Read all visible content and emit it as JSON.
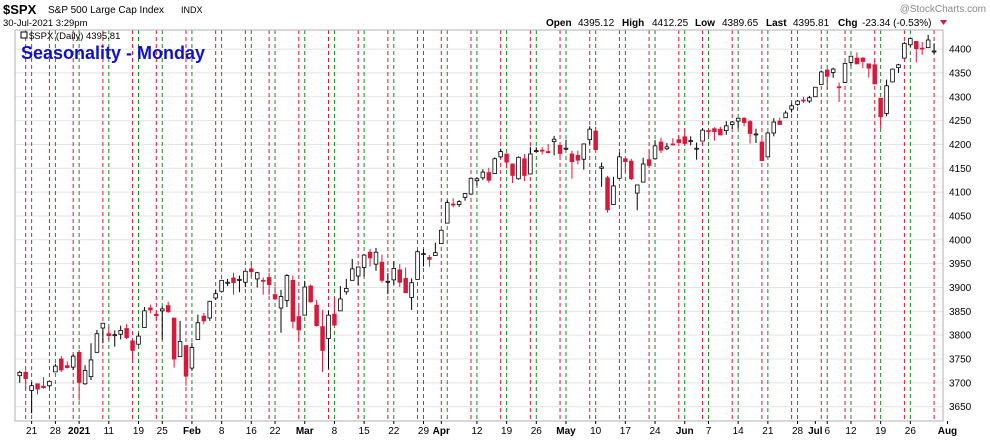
{
  "header": {
    "symbol": "$SPX",
    "name": "S&P 500 Large Cap Index",
    "exchange": "INDX",
    "date": "30-Jul-2021 3:29pm",
    "watermark": "@StockCharts.com",
    "open_label": "Open",
    "open": "4395.12",
    "high_label": "High",
    "high": "4412.25",
    "low_label": "Low",
    "low": "4389.65",
    "last_label": "Last",
    "last": "4395.81",
    "chg_label": "Chg",
    "chg": "-23.34 (-0.53%)"
  },
  "legend": {
    "text": "$SPX (Daily) 4395.81"
  },
  "title": "Seasonality - Monday",
  "colors": {
    "up": "#ffffff",
    "down": "#d8193b",
    "outline": "#000000",
    "monday_line": "#1a8a1a",
    "friday_line": "#d8193b",
    "title": "#1010cc",
    "grid": "#e4e4e4",
    "change": "#d8193b"
  },
  "chart_data": {
    "type": "candlestick",
    "title": "Seasonality - Monday",
    "symbol": "$SPX",
    "interval": "Daily",
    "ylim": [
      3620,
      4440
    ],
    "yticks": [
      3650,
      3700,
      3750,
      3800,
      3850,
      3900,
      3950,
      4000,
      4050,
      4100,
      4150,
      4200,
      4250,
      4300,
      4350,
      4400
    ],
    "grid": true,
    "vertical_lines": "green dashed line on each Monday, red dashed line on each Friday",
    "xticks": [
      {
        "label": "21",
        "date": "2020-12-21"
      },
      {
        "label": "28",
        "date": "2020-12-28"
      },
      {
        "label": "2021",
        "date": "2021-01-04"
      },
      {
        "label": "11",
        "date": "2021-01-11"
      },
      {
        "label": "19",
        "date": "2021-01-19"
      },
      {
        "label": "25",
        "date": "2021-01-25"
      },
      {
        "label": "Feb",
        "date": "2021-02-01"
      },
      {
        "label": "8",
        "date": "2021-02-08"
      },
      {
        "label": "16",
        "date": "2021-02-16"
      },
      {
        "label": "22",
        "date": "2021-02-22"
      },
      {
        "label": "Mar",
        "date": "2021-03-01"
      },
      {
        "label": "8",
        "date": "2021-03-08"
      },
      {
        "label": "15",
        "date": "2021-03-15"
      },
      {
        "label": "22",
        "date": "2021-03-22"
      },
      {
        "label": "29",
        "date": "2021-03-29"
      },
      {
        "label": "Apr",
        "date": "2021-04-01"
      },
      {
        "label": "12",
        "date": "2021-04-12"
      },
      {
        "label": "19",
        "date": "2021-04-19"
      },
      {
        "label": "26",
        "date": "2021-04-26"
      },
      {
        "label": "May",
        "date": "2021-05-03"
      },
      {
        "label": "10",
        "date": "2021-05-10"
      },
      {
        "label": "17",
        "date": "2021-05-17"
      },
      {
        "label": "24",
        "date": "2021-05-24"
      },
      {
        "label": "Jun",
        "date": "2021-06-01"
      },
      {
        "label": "7",
        "date": "2021-06-07"
      },
      {
        "label": "14",
        "date": "2021-06-14"
      },
      {
        "label": "21",
        "date": "2021-06-21"
      },
      {
        "label": "28",
        "date": "2021-06-28"
      },
      {
        "label": "Jul",
        "date": "2021-07-01"
      },
      {
        "label": "6",
        "date": "2021-07-06"
      },
      {
        "label": "12",
        "date": "2021-07-12"
      },
      {
        "label": "19",
        "date": "2021-07-19"
      },
      {
        "label": "26",
        "date": "2021-07-26"
      },
      {
        "label": "Aug",
        "date": "2021-08-02"
      }
    ],
    "mondays": [
      "2020-12-21",
      "2020-12-28",
      "2021-01-04",
      "2021-01-11",
      "2021-01-19",
      "2021-01-25",
      "2021-02-01",
      "2021-02-08",
      "2021-02-16",
      "2021-02-22",
      "2021-03-01",
      "2021-03-08",
      "2021-03-15",
      "2021-03-22",
      "2021-03-29",
      "2021-04-05",
      "2021-04-12",
      "2021-04-19",
      "2021-04-26",
      "2021-05-03",
      "2021-05-10",
      "2021-05-17",
      "2021-05-24",
      "2021-06-01",
      "2021-06-07",
      "2021-06-14",
      "2021-06-21",
      "2021-06-28",
      "2021-07-06",
      "2021-07-12",
      "2021-07-19",
      "2021-07-26"
    ],
    "fridays": [
      "2020-12-18",
      "2020-12-24",
      "2020-12-31",
      "2021-01-08",
      "2021-01-15",
      "2021-01-22",
      "2021-01-29",
      "2021-02-05",
      "2021-02-12",
      "2021-02-19",
      "2021-02-26",
      "2021-03-05",
      "2021-03-12",
      "2021-03-19",
      "2021-03-26",
      "2021-04-01",
      "2021-04-09",
      "2021-04-16",
      "2021-04-23",
      "2021-04-30",
      "2021-05-07",
      "2021-05-14",
      "2021-05-21",
      "2021-05-28",
      "2021-06-04",
      "2021-06-11",
      "2021-06-18",
      "2021-06-25",
      "2021-07-02",
      "2021-07-09",
      "2021-07-16",
      "2021-07-23",
      "2021-07-30"
    ],
    "ohlc": [
      [
        "2020-12-17",
        3715,
        3725,
        3700,
        3722
      ],
      [
        "2020-12-18",
        3722,
        3726,
        3687,
        3709
      ],
      [
        "2020-12-21",
        3684,
        3702,
        3636,
        3694
      ],
      [
        "2020-12-22",
        3698,
        3698,
        3676,
        3687
      ],
      [
        "2020-12-23",
        3693,
        3712,
        3688,
        3690
      ],
      [
        "2020-12-24",
        3694,
        3703,
        3690,
        3703
      ],
      [
        "2020-12-28",
        3723,
        3740,
        3723,
        3735
      ],
      [
        "2020-12-29",
        3750,
        3756,
        3723,
        3727
      ],
      [
        "2020-12-30",
        3736,
        3745,
        3730,
        3732
      ],
      [
        "2020-12-31",
        3733,
        3760,
        3727,
        3756
      ],
      [
        "2021-01-04",
        3764,
        3769,
        3663,
        3701
      ],
      [
        "2021-01-05",
        3698,
        3737,
        3696,
        3726
      ],
      [
        "2021-01-06",
        3713,
        3783,
        3706,
        3748
      ],
      [
        "2021-01-07",
        3764,
        3811,
        3764,
        3803
      ],
      [
        "2021-01-08",
        3815,
        3826,
        3783,
        3825
      ],
      [
        "2021-01-11",
        3803,
        3818,
        3789,
        3799
      ],
      [
        "2021-01-12",
        3801,
        3810,
        3776,
        3801
      ],
      [
        "2021-01-13",
        3802,
        3820,
        3791,
        3810
      ],
      [
        "2021-01-14",
        3814,
        3823,
        3792,
        3795
      ],
      [
        "2021-01-15",
        3788,
        3789,
        3750,
        3768
      ],
      [
        "2021-01-19",
        3781,
        3804,
        3780,
        3798
      ],
      [
        "2021-01-20",
        3816,
        3859,
        3816,
        3851
      ],
      [
        "2021-01-21",
        3857,
        3864,
        3846,
        3853
      ],
      [
        "2021-01-22",
        3844,
        3852,
        3831,
        3841
      ],
      [
        "2021-01-25",
        3851,
        3860,
        3791,
        3855
      ],
      [
        "2021-01-26",
        3862,
        3870,
        3847,
        3849
      ],
      [
        "2021-01-27",
        3836,
        3836,
        3732,
        3750
      ],
      [
        "2021-01-28",
        3755,
        3830,
        3755,
        3787
      ],
      [
        "2021-01-29",
        3778,
        3778,
        3694,
        3714
      ],
      [
        "2021-02-01",
        3731,
        3784,
        3725,
        3774
      ],
      [
        "2021-02-02",
        3791,
        3843,
        3791,
        3826
      ],
      [
        "2021-02-03",
        3840,
        3847,
        3823,
        3830
      ],
      [
        "2021-02-04",
        3836,
        3872,
        3830,
        3871
      ],
      [
        "2021-02-05",
        3878,
        3894,
        3874,
        3887
      ],
      [
        "2021-02-08",
        3892,
        3915,
        3892,
        3915
      ],
      [
        "2021-02-09",
        3910,
        3918,
        3903,
        3911
      ],
      [
        "2021-02-10",
        3920,
        3931,
        3885,
        3910
      ],
      [
        "2021-02-11",
        3916,
        3925,
        3890,
        3917
      ],
      [
        "2021-02-12",
        3911,
        3935,
        3901,
        3934
      ],
      [
        "2021-02-16",
        3939,
        3950,
        3923,
        3933
      ],
      [
        "2021-02-17",
        3918,
        3933,
        3900,
        3931
      ],
      [
        "2021-02-18",
        3915,
        3921,
        3885,
        3914
      ],
      [
        "2021-02-19",
        3921,
        3931,
        3884,
        3906
      ],
      [
        "2021-02-22",
        3885,
        3902,
        3874,
        3876
      ],
      [
        "2021-02-23",
        3857,
        3895,
        3805,
        3881
      ],
      [
        "2021-02-24",
        3873,
        3928,
        3859,
        3925
      ],
      [
        "2021-02-25",
        3915,
        3925,
        3814,
        3829
      ],
      [
        "2021-02-26",
        3839,
        3861,
        3789,
        3811
      ],
      [
        "2021-03-01",
        3842,
        3914,
        3842,
        3901
      ],
      [
        "2021-03-02",
        3903,
        3906,
        3868,
        3870
      ],
      [
        "2021-03-03",
        3863,
        3874,
        3818,
        3820
      ],
      [
        "2021-03-04",
        3818,
        3853,
        3723,
        3768
      ],
      [
        "2021-03-05",
        3793,
        3851,
        3730,
        3842
      ],
      [
        "2021-03-08",
        3844,
        3881,
        3821,
        3821
      ],
      [
        "2021-03-09",
        3851,
        3903,
        3851,
        3876
      ],
      [
        "2021-03-10",
        3891,
        3918,
        3885,
        3898
      ],
      [
        "2021-03-11",
        3915,
        3960,
        3915,
        3939
      ],
      [
        "2021-03-12",
        3924,
        3944,
        3905,
        3943
      ],
      [
        "2021-03-15",
        3942,
        3970,
        3923,
        3968
      ],
      [
        "2021-03-16",
        3974,
        3981,
        3944,
        3962
      ],
      [
        "2021-03-17",
        3949,
        3983,
        3935,
        3974
      ],
      [
        "2021-03-18",
        3953,
        3969,
        3910,
        3915
      ],
      [
        "2021-03-19",
        3913,
        3930,
        3886,
        3913
      ],
      [
        "2021-03-22",
        3916,
        3955,
        3906,
        3940
      ],
      [
        "2021-03-23",
        3937,
        3949,
        3901,
        3911
      ],
      [
        "2021-03-24",
        3919,
        3942,
        3889,
        3889
      ],
      [
        "2021-03-25",
        3879,
        3919,
        3853,
        3910
      ],
      [
        "2021-03-26",
        3917,
        3978,
        3917,
        3975
      ],
      [
        "2021-03-29",
        3969,
        3981,
        3944,
        3971
      ],
      [
        "2021-03-30",
        3963,
        3968,
        3944,
        3959
      ],
      [
        "2021-03-31",
        3967,
        3994,
        3967,
        3973
      ],
      [
        "2021-04-01",
        3992,
        4020,
        3992,
        4020
      ],
      [
        "2021-04-05",
        4035,
        4083,
        4035,
        4078
      ],
      [
        "2021-04-06",
        4075,
        4087,
        4068,
        4074
      ],
      [
        "2021-04-07",
        4074,
        4083,
        4069,
        4080
      ],
      [
        "2021-04-08",
        4089,
        4098,
        4082,
        4097
      ],
      [
        "2021-04-09",
        4096,
        4129,
        4095,
        4129
      ],
      [
        "2021-04-12",
        4124,
        4131,
        4114,
        4128
      ],
      [
        "2021-04-13",
        4130,
        4148,
        4125,
        4142
      ],
      [
        "2021-04-14",
        4141,
        4151,
        4120,
        4125
      ],
      [
        "2021-04-15",
        4139,
        4173,
        4139,
        4170
      ],
      [
        "2021-04-16",
        4174,
        4191,
        4171,
        4185
      ],
      [
        "2021-04-19",
        4180,
        4180,
        4150,
        4163
      ],
      [
        "2021-04-20",
        4159,
        4160,
        4119,
        4135
      ],
      [
        "2021-04-21",
        4128,
        4175,
        4126,
        4173
      ],
      [
        "2021-04-22",
        4170,
        4180,
        4123,
        4135
      ],
      [
        "2021-04-23",
        4138,
        4195,
        4138,
        4180
      ],
      [
        "2021-04-26",
        4185,
        4194,
        4183,
        4187
      ],
      [
        "2021-04-27",
        4188,
        4194,
        4179,
        4187
      ],
      [
        "2021-04-28",
        4185,
        4201,
        4181,
        4183
      ],
      [
        "2021-04-29",
        4206,
        4218,
        4177,
        4211
      ],
      [
        "2021-04-30",
        4198,
        4199,
        4174,
        4181
      ],
      [
        "2021-05-03",
        4192,
        4210,
        4188,
        4192
      ],
      [
        "2021-05-04",
        4180,
        4187,
        4128,
        4164
      ],
      [
        "2021-05-05",
        4177,
        4187,
        4158,
        4167
      ],
      [
        "2021-05-06",
        4169,
        4202,
        4147,
        4201
      ],
      [
        "2021-05-07",
        4210,
        4238,
        4201,
        4232
      ],
      [
        "2021-05-10",
        4228,
        4237,
        4188,
        4189
      ],
      [
        "2021-05-11",
        4150,
        4162,
        4111,
        4153
      ],
      [
        "2021-05-12",
        4130,
        4134,
        4057,
        4063
      ],
      [
        "2021-05-13",
        4074,
        4132,
        4074,
        4113
      ],
      [
        "2021-05-14",
        4129,
        4183,
        4129,
        4174
      ],
      [
        "2021-05-17",
        4170,
        4171,
        4142,
        4164
      ],
      [
        "2021-05-18",
        4165,
        4170,
        4125,
        4128
      ],
      [
        "2021-05-19",
        4098,
        4116,
        4062,
        4115
      ],
      [
        "2021-05-20",
        4121,
        4172,
        4121,
        4159
      ],
      [
        "2021-05-21",
        4168,
        4188,
        4151,
        4156
      ],
      [
        "2021-05-24",
        4170,
        4209,
        4170,
        4197
      ],
      [
        "2021-05-25",
        4205,
        4214,
        4182,
        4188
      ],
      [
        "2021-05-26",
        4191,
        4203,
        4188,
        4195
      ],
      [
        "2021-05-27",
        4201,
        4213,
        4198,
        4200
      ],
      [
        "2021-05-28",
        4210,
        4218,
        4203,
        4204
      ],
      [
        "2021-06-01",
        4216,
        4234,
        4197,
        4202
      ],
      [
        "2021-06-02",
        4207,
        4217,
        4198,
        4208
      ],
      [
        "2021-06-03",
        4191,
        4204,
        4168,
        4192
      ],
      [
        "2021-06-04",
        4207,
        4234,
        4207,
        4230
      ],
      [
        "2021-06-07",
        4229,
        4233,
        4215,
        4227
      ],
      [
        "2021-06-08",
        4233,
        4236,
        4208,
        4227
      ],
      [
        "2021-06-09",
        4232,
        4237,
        4219,
        4220
      ],
      [
        "2021-06-10",
        4229,
        4249,
        4220,
        4239
      ],
      [
        "2021-06-11",
        4242,
        4249,
        4233,
        4247
      ],
      [
        "2021-06-14",
        4249,
        4255,
        4234,
        4255
      ],
      [
        "2021-06-15",
        4255,
        4257,
        4238,
        4246
      ],
      [
        "2021-06-16",
        4248,
        4251,
        4202,
        4223
      ],
      [
        "2021-06-17",
        4220,
        4233,
        4203,
        4222
      ],
      [
        "2021-06-18",
        4205,
        4211,
        4165,
        4166
      ],
      [
        "2021-06-21",
        4174,
        4226,
        4174,
        4224
      ],
      [
        "2021-06-22",
        4224,
        4255,
        4217,
        4247
      ],
      [
        "2021-06-23",
        4249,
        4256,
        4241,
        4242
      ],
      [
        "2021-06-24",
        4256,
        4271,
        4256,
        4266
      ],
      [
        "2021-06-25",
        4274,
        4286,
        4267,
        4281
      ],
      [
        "2021-06-28",
        4284,
        4293,
        4281,
        4291
      ],
      [
        "2021-06-29",
        4293,
        4300,
        4287,
        4291
      ],
      [
        "2021-06-30",
        4291,
        4302,
        4287,
        4298
      ],
      [
        "2021-07-01",
        4300,
        4320,
        4300,
        4320
      ],
      [
        "2021-07-02",
        4326,
        4355,
        4326,
        4352
      ],
      [
        "2021-07-06",
        4356,
        4358,
        4315,
        4343
      ],
      [
        "2021-07-07",
        4351,
        4361,
        4340,
        4358
      ],
      [
        "2021-07-08",
        4321,
        4330,
        4289,
        4320
      ],
      [
        "2021-07-09",
        4330,
        4372,
        4330,
        4370
      ],
      [
        "2021-07-12",
        4372,
        4386,
        4365,
        4385
      ],
      [
        "2021-07-13",
        4381,
        4393,
        4368,
        4369
      ],
      [
        "2021-07-14",
        4381,
        4383,
        4360,
        4374
      ],
      [
        "2021-07-15",
        4369,
        4369,
        4340,
        4360
      ],
      [
        "2021-07-16",
        4367,
        4376,
        4326,
        4327
      ],
      [
        "2021-07-19",
        4297,
        4297,
        4234,
        4258
      ],
      [
        "2021-07-20",
        4265,
        4336,
        4259,
        4323
      ],
      [
        "2021-07-21",
        4331,
        4359,
        4331,
        4358
      ],
      [
        "2021-07-22",
        4361,
        4369,
        4350,
        4367
      ],
      [
        "2021-07-23",
        4381,
        4415,
        4381,
        4412
      ],
      [
        "2021-07-26",
        4409,
        4422,
        4405,
        4422
      ],
      [
        "2021-07-27",
        4416,
        4416,
        4372,
        4401
      ],
      [
        "2021-07-28",
        4402,
        4415,
        4388,
        4400
      ],
      [
        "2021-07-29",
        4403,
        4430,
        4403,
        4419
      ],
      [
        "2021-07-30",
        4395,
        4412,
        4390,
        4396
      ]
    ]
  }
}
